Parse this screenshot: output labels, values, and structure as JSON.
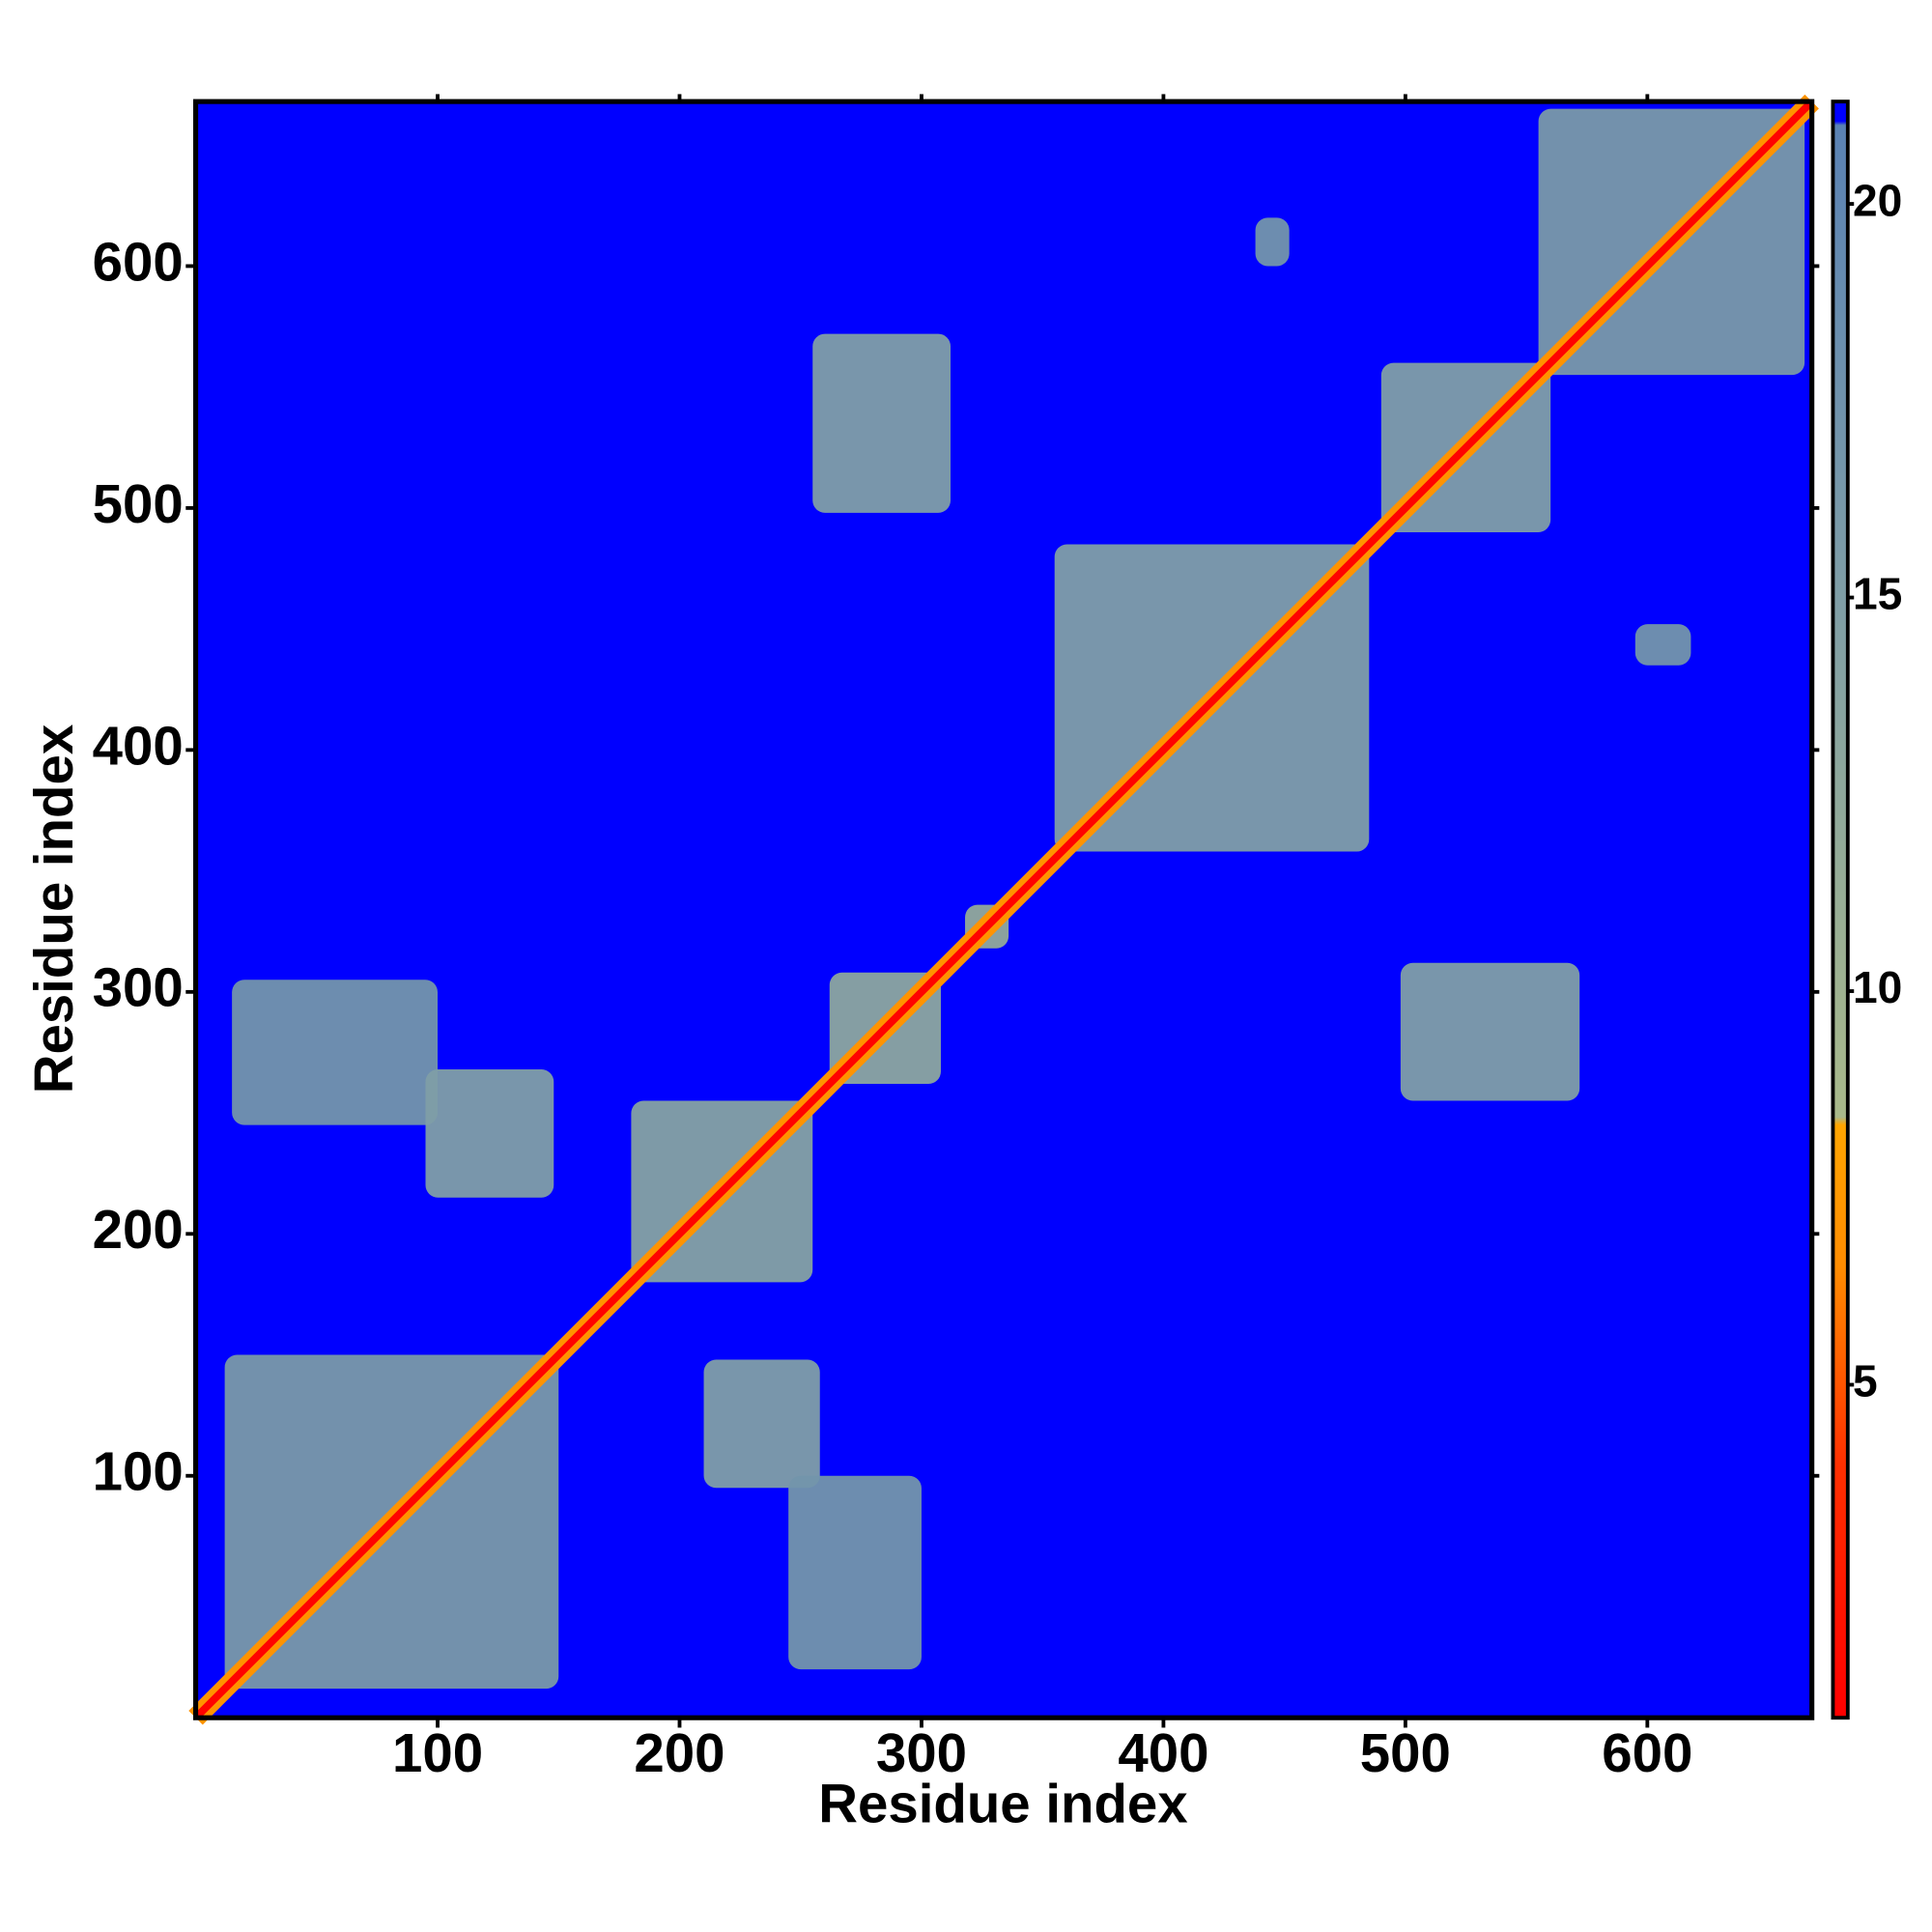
{
  "chart_data": {
    "type": "heatmap",
    "x_label": "Residue index",
    "y_label": "Residue index",
    "xlim": [
      0,
      668
    ],
    "ylim": [
      0,
      668
    ],
    "xticks": [
      100,
      200,
      300,
      400,
      500,
      600
    ],
    "yticks": [
      100,
      200,
      300,
      400,
      500,
      600
    ],
    "background_value": 21.3,
    "diagonal_value": 1,
    "patches": [
      {
        "x": [
          12,
          150
        ],
        "y": [
          12,
          150
        ],
        "value": 16
      },
      {
        "x": [
          180,
          255
        ],
        "y": [
          180,
          255
        ],
        "value": 14
      },
      {
        "x": [
          262,
          308
        ],
        "y": [
          262,
          308
        ],
        "value": 13
      },
      {
        "x": [
          318,
          336
        ],
        "y": [
          318,
          336
        ],
        "value": 12
      },
      {
        "x": [
          355,
          485
        ],
        "y": [
          358,
          485
        ],
        "value": 15
      },
      {
        "x": [
          490,
          560
        ],
        "y": [
          490,
          560
        ],
        "value": 15
      },
      {
        "x": [
          555,
          665
        ],
        "y": [
          555,
          665
        ],
        "value": 16
      },
      {
        "x": [
          15,
          100
        ],
        "y": [
          245,
          305
        ],
        "value": 17
      },
      {
        "x": [
          95,
          148
        ],
        "y": [
          215,
          268
        ],
        "value": 15
      },
      {
        "x": [
          210,
          258
        ],
        "y": [
          95,
          148
        ],
        "value": 15
      },
      {
        "x": [
          245,
          300
        ],
        "y": [
          20,
          100
        ],
        "value": 17
      },
      {
        "x": [
          255,
          312
        ],
        "y": [
          498,
          572
        ],
        "value": 15
      },
      {
        "x": [
          498,
          572
        ],
        "y": [
          255,
          312
        ],
        "value": 15
      },
      {
        "x": [
          438,
          452
        ],
        "y": [
          600,
          620
        ],
        "value": 17
      },
      {
        "x": [
          595,
          618
        ],
        "y": [
          435,
          452
        ],
        "value": 17
      }
    ],
    "colorbar": {
      "lim": [
        0.77,
        21.3
      ],
      "ticks": [
        5,
        10,
        15,
        20
      ],
      "stops": [
        {
          "value": 0.77,
          "color": "#ff0000"
        },
        {
          "value": 4,
          "color": "#ff3000"
        },
        {
          "value": 6.5,
          "color": "#ff8c00"
        },
        {
          "value": 8.3,
          "color": "#ffa500"
        },
        {
          "value": 8.4,
          "color": "#a9b98a"
        },
        {
          "value": 15,
          "color": "#7f9ea6"
        },
        {
          "value": 21,
          "color": "#5a82b4"
        },
        {
          "value": 21.05,
          "color": "#0000ff"
        },
        {
          "value": 21.3,
          "color": "#0000ff"
        }
      ]
    }
  }
}
